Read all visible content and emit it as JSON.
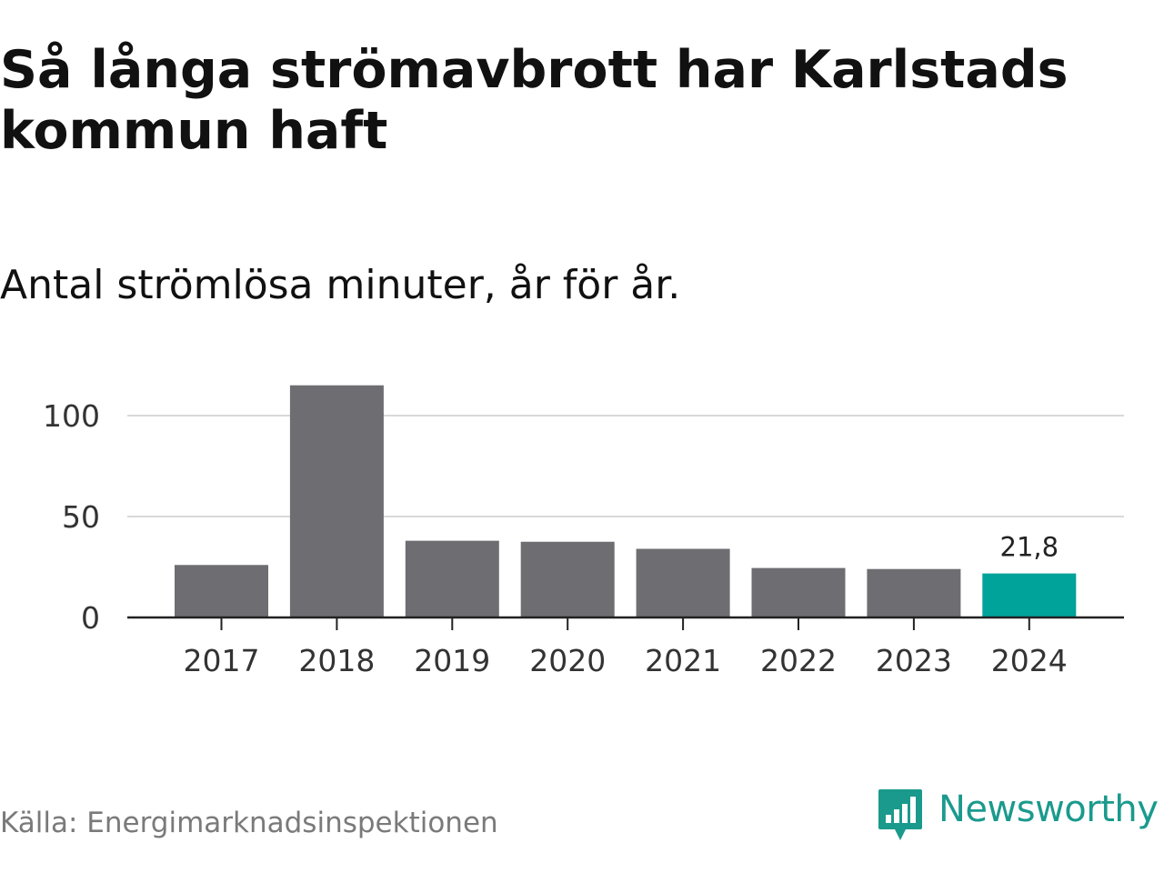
{
  "title": "Så långa strömavbrott har Karlstads kommun haft",
  "subtitle": "Antal strömlösa minuter, år för år.",
  "source": "Källa: Energimarknadsinspektionen",
  "brand": {
    "name": "Newsworthy",
    "icon": "newsworthy-logo-icon",
    "color": "#1a9a8d"
  },
  "colors": {
    "bar": "#6e6d72",
    "highlight": "#00a39a",
    "grid": "#d9d9d9",
    "axis": "#222222"
  },
  "chart_data": {
    "type": "bar",
    "title": "Så långa strömavbrott har Karlstads kommun haft",
    "subtitle": "Antal strömlösa minuter, år för år.",
    "xlabel": "",
    "ylabel": "",
    "categories": [
      "2017",
      "2018",
      "2019",
      "2020",
      "2021",
      "2022",
      "2023",
      "2024"
    ],
    "values": [
      26,
      115,
      38,
      37.5,
      34,
      24.5,
      24,
      21.8
    ],
    "highlight_index": 7,
    "data_labels": [
      {
        "index": 7,
        "text": "21,8"
      }
    ],
    "ylim": [
      0,
      115
    ],
    "yticks": [
      0,
      50,
      100
    ],
    "grid": true,
    "legend": "none"
  }
}
